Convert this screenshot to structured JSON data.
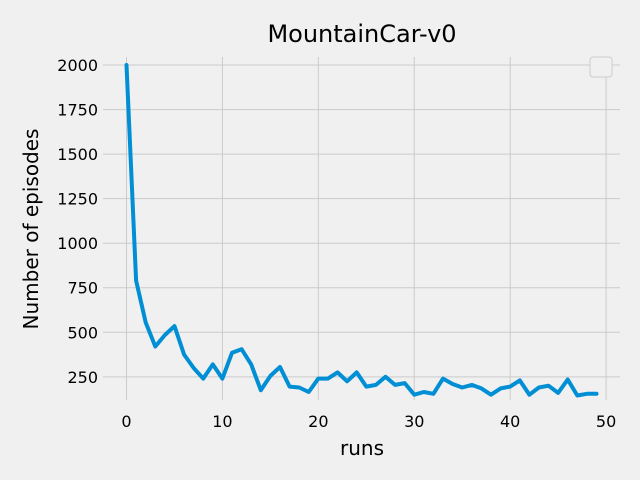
{
  "colors": {
    "background": "#f0f0f0",
    "grid": "#cbcbcb",
    "series": "#008fd5"
  },
  "chart_data": {
    "type": "line",
    "title": "MountainCar-v0",
    "xlabel": "runs",
    "ylabel": "Number of episodes",
    "xlim": [
      -2.45,
      51.45
    ],
    "ylim": [
      120,
      2045
    ],
    "xticks": [
      0,
      10,
      20,
      30,
      40,
      50
    ],
    "yticks": [
      250,
      500,
      750,
      1000,
      1250,
      1500,
      1750,
      2000
    ],
    "grid": true,
    "legend": {
      "placement": "top-right",
      "entries": []
    },
    "series": [
      {
        "x": [
          0,
          1,
          2,
          3,
          4,
          5,
          6,
          7,
          8,
          9,
          10,
          11,
          12,
          13,
          14,
          15,
          16,
          17,
          18,
          19,
          20,
          21,
          22,
          23,
          24,
          25,
          26,
          27,
          28,
          29,
          30,
          31,
          32,
          33,
          34,
          35,
          36,
          37,
          38,
          39,
          40,
          41,
          42,
          43,
          44,
          45,
          46,
          47,
          48,
          49
        ],
        "values": [
          2000,
          790,
          555,
          420,
          485,
          535,
          375,
          300,
          240,
          320,
          240,
          385,
          405,
          320,
          175,
          255,
          305,
          195,
          190,
          165,
          240,
          240,
          275,
          225,
          275,
          195,
          205,
          250,
          205,
          215,
          150,
          165,
          155,
          240,
          210,
          190,
          205,
          185,
          150,
          185,
          195,
          230,
          150,
          190,
          200,
          160,
          235,
          145,
          155,
          155
        ]
      }
    ]
  }
}
